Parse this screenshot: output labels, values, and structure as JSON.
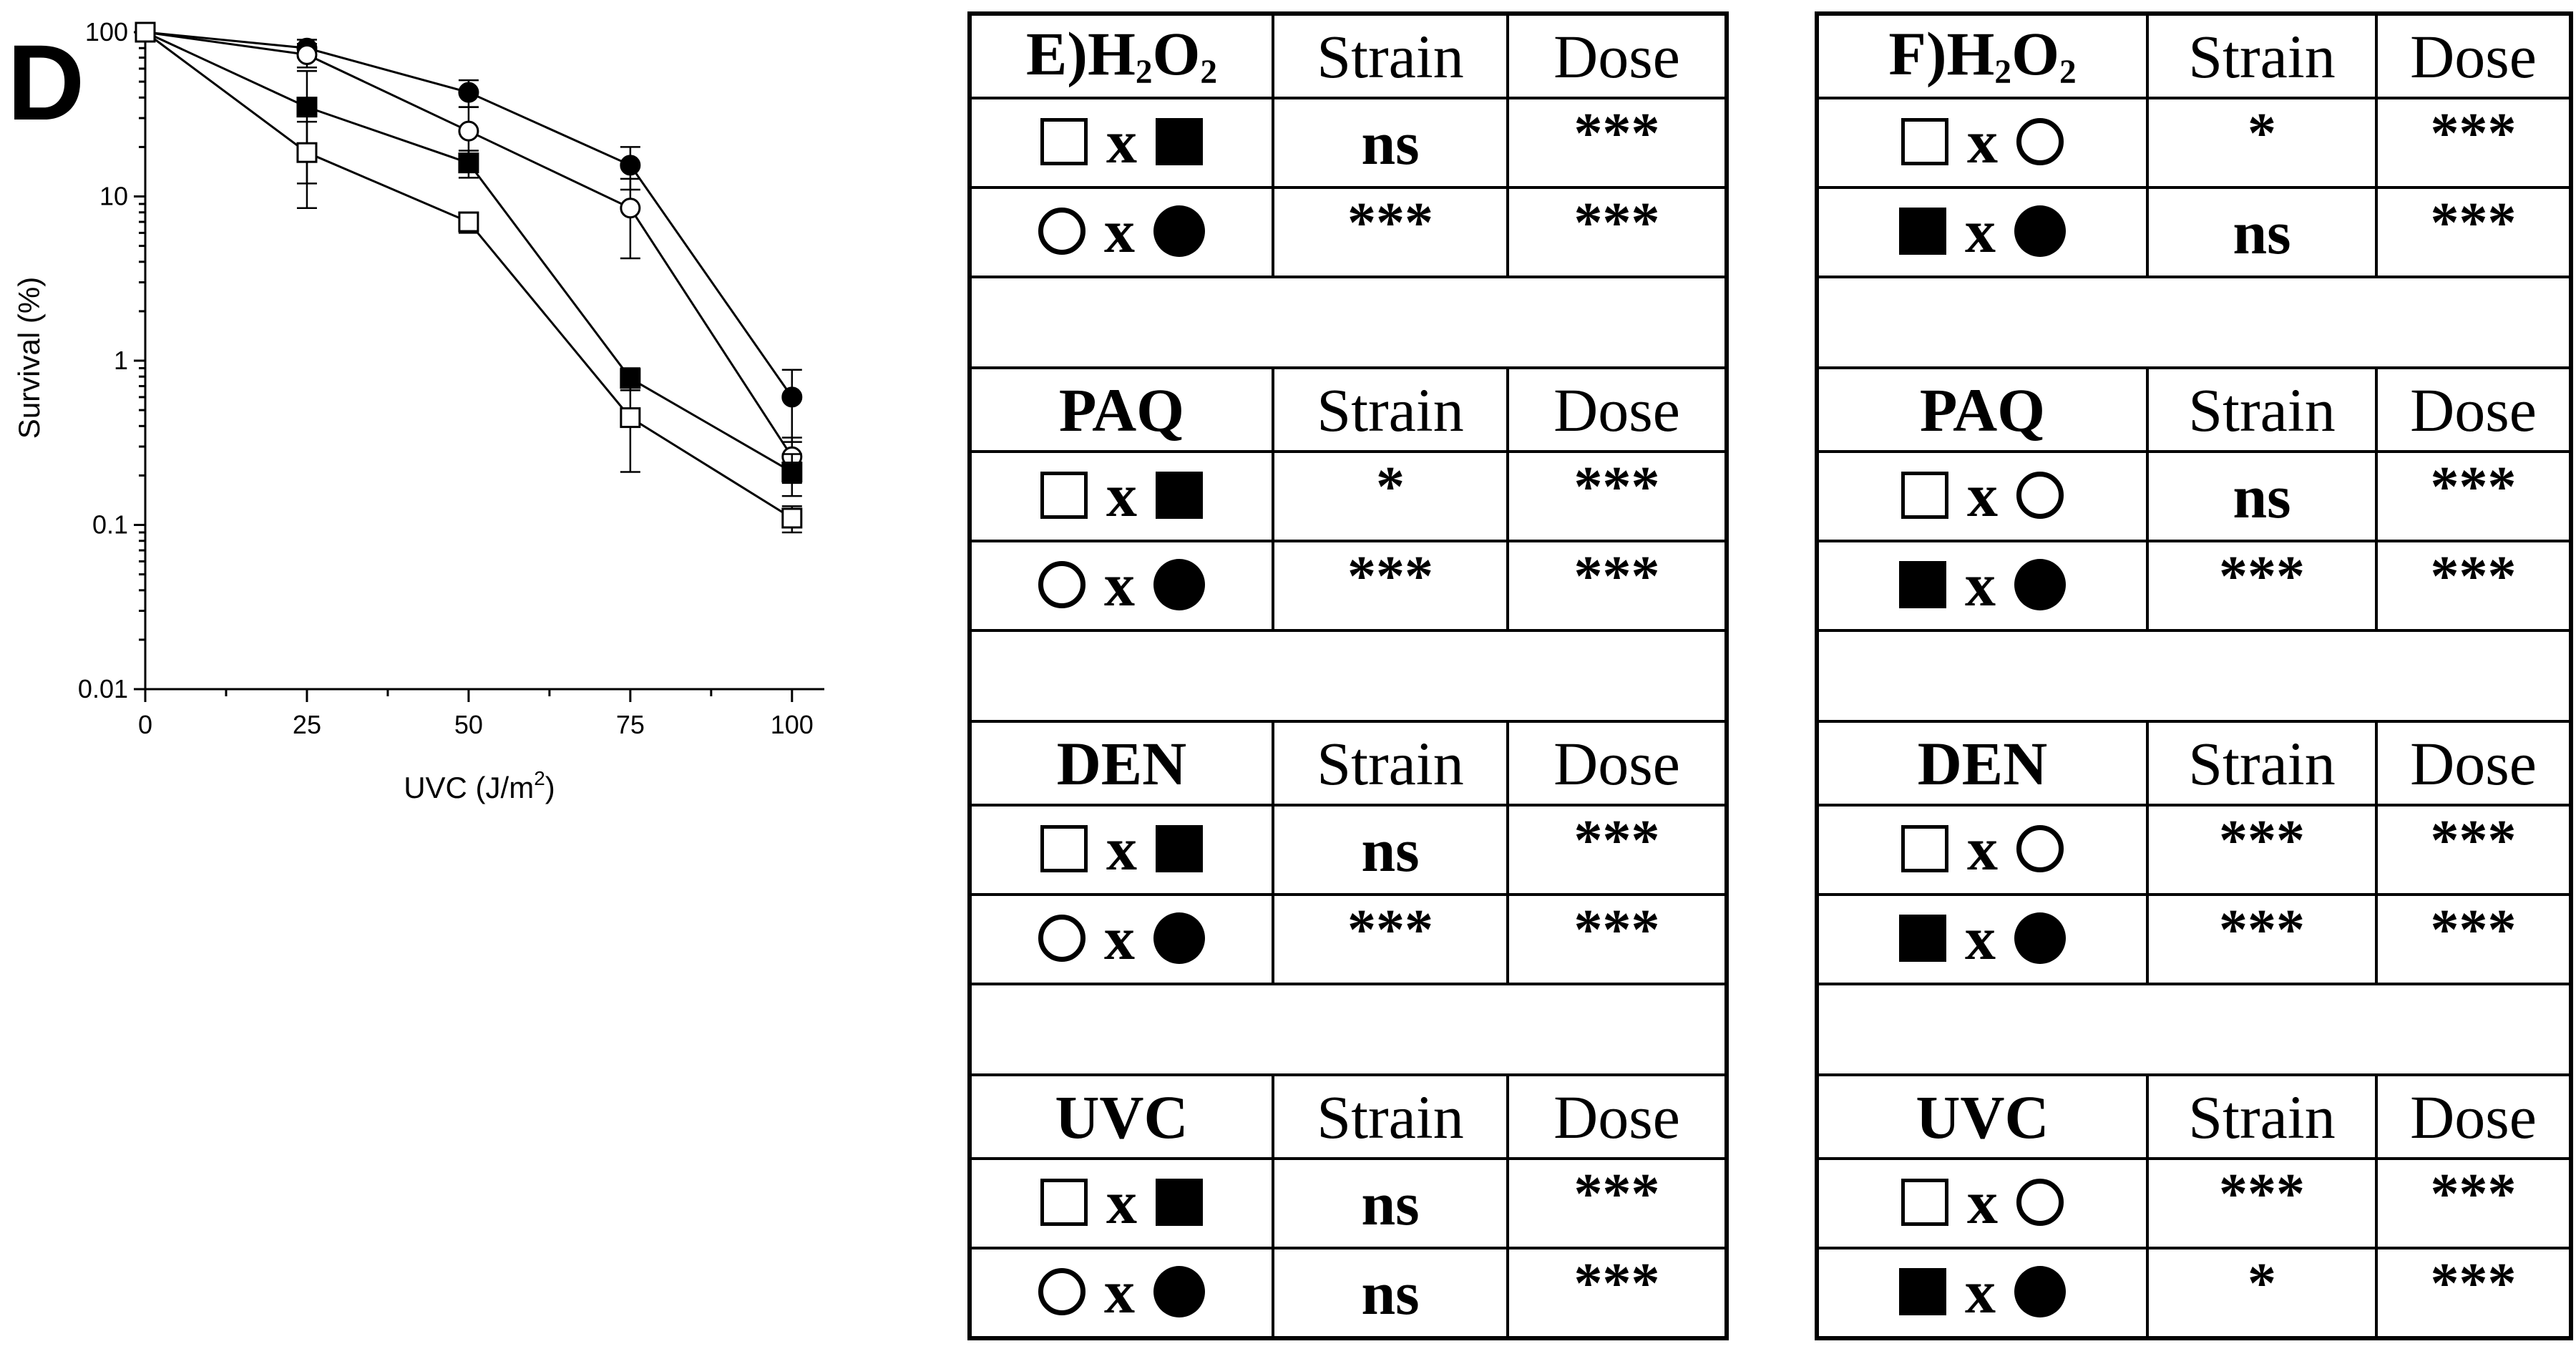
{
  "panel_label": "D",
  "chart_data": {
    "type": "line",
    "xlabel": "UVC (J/m",
    "xlabel_sup": "2",
    "xlabel_close": ")",
    "ylabel": "Survival (%)",
    "yscale": "log",
    "xlim": [
      0,
      105
    ],
    "ylim": [
      0.01,
      100
    ],
    "x_ticks": [
      "0",
      "25",
      "50",
      "75",
      "100"
    ],
    "y_ticks": [
      "0.01",
      "0.1",
      "1",
      "10",
      "100"
    ],
    "x": [
      0,
      25,
      50,
      75,
      100
    ],
    "series": [
      {
        "marker": "filled-circle",
        "values": [
          100,
          80,
          43,
          15.5,
          0.6
        ],
        "err": [
          0,
          10,
          8,
          4.5,
          0.28
        ]
      },
      {
        "marker": "open-circle",
        "values": [
          100,
          73,
          25,
          8.5,
          0.26
        ],
        "err": [
          0,
          12,
          10,
          4.3,
          0.08
        ]
      },
      {
        "marker": "filled-square",
        "values": [
          100,
          35,
          16,
          0.78,
          0.21
        ],
        "err": [
          0,
          23,
          3,
          0.12,
          0.06
        ]
      },
      {
        "marker": "open-square",
        "values": [
          100,
          18.5,
          7,
          0.45,
          0.11
        ],
        "err": [
          0,
          10,
          1,
          0.24,
          0.02
        ]
      }
    ]
  },
  "tables": [
    {
      "id": "E",
      "sections": [
        {
          "head_prefix": "E)H",
          "head_sub1": "2",
          "head_mid": "O",
          "head_sub2": "2",
          "col1": "Strain",
          "col2": "Dose",
          "rows": [
            {
              "a": "open-square",
              "x": "x",
              "b": "filled-square",
              "strain": "ns",
              "dose": "***"
            },
            {
              "a": "open-circle",
              "x": "x",
              "b": "filled-circle",
              "strain": "***",
              "dose": "***"
            }
          ]
        },
        {
          "head": "PAQ",
          "col1": "Strain",
          "col2": "Dose",
          "rows": [
            {
              "a": "open-square",
              "x": "x",
              "b": "filled-square",
              "strain": "*",
              "dose": "***"
            },
            {
              "a": "open-circle",
              "x": "x",
              "b": "filled-circle",
              "strain": "***",
              "dose": "***"
            }
          ]
        },
        {
          "head": "DEN",
          "col1": "Strain",
          "col2": "Dose",
          "rows": [
            {
              "a": "open-square",
              "x": "x",
              "b": "filled-square",
              "strain": "ns",
              "dose": "***"
            },
            {
              "a": "open-circle",
              "x": "x",
              "b": "filled-circle",
              "strain": "***",
              "dose": "***"
            }
          ]
        },
        {
          "head": "UVC",
          "col1": "Strain",
          "col2": "Dose",
          "rows": [
            {
              "a": "open-square",
              "x": "x",
              "b": "filled-square",
              "strain": "ns",
              "dose": "***"
            },
            {
              "a": "open-circle",
              "x": "x",
              "b": "filled-circle",
              "strain": "ns",
              "dose": "***"
            }
          ]
        }
      ]
    },
    {
      "id": "F",
      "sections": [
        {
          "head_prefix": "F)H",
          "head_sub1": "2",
          "head_mid": "O",
          "head_sub2": "2",
          "col1": "Strain",
          "col2": "Dose",
          "rows": [
            {
              "a": "open-square",
              "x": "x",
              "b": "open-circle",
              "strain": "*",
              "dose": "***"
            },
            {
              "a": "filled-square",
              "x": "x",
              "b": "filled-circle",
              "strain": "ns",
              "dose": "***"
            }
          ]
        },
        {
          "head": "PAQ",
          "col1": "Strain",
          "col2": "Dose",
          "rows": [
            {
              "a": "open-square",
              "x": "x",
              "b": "open-circle",
              "strain": "ns",
              "dose": "***"
            },
            {
              "a": "filled-square",
              "x": "x",
              "b": "filled-circle",
              "strain": "***",
              "dose": "***"
            }
          ]
        },
        {
          "head": "DEN",
          "col1": "Strain",
          "col2": "Dose",
          "rows": [
            {
              "a": "open-square",
              "x": "x",
              "b": "open-circle",
              "strain": "***",
              "dose": "***"
            },
            {
              "a": "filled-square",
              "x": "x",
              "b": "filled-circle",
              "strain": "***",
              "dose": "***"
            }
          ]
        },
        {
          "head": "UVC",
          "col1": "Strain",
          "col2": "Dose",
          "rows": [
            {
              "a": "open-square",
              "x": "x",
              "b": "open-circle",
              "strain": "***",
              "dose": "***"
            },
            {
              "a": "filled-square",
              "x": "x",
              "b": "filled-circle",
              "strain": "*",
              "dose": "***"
            }
          ]
        }
      ]
    }
  ]
}
